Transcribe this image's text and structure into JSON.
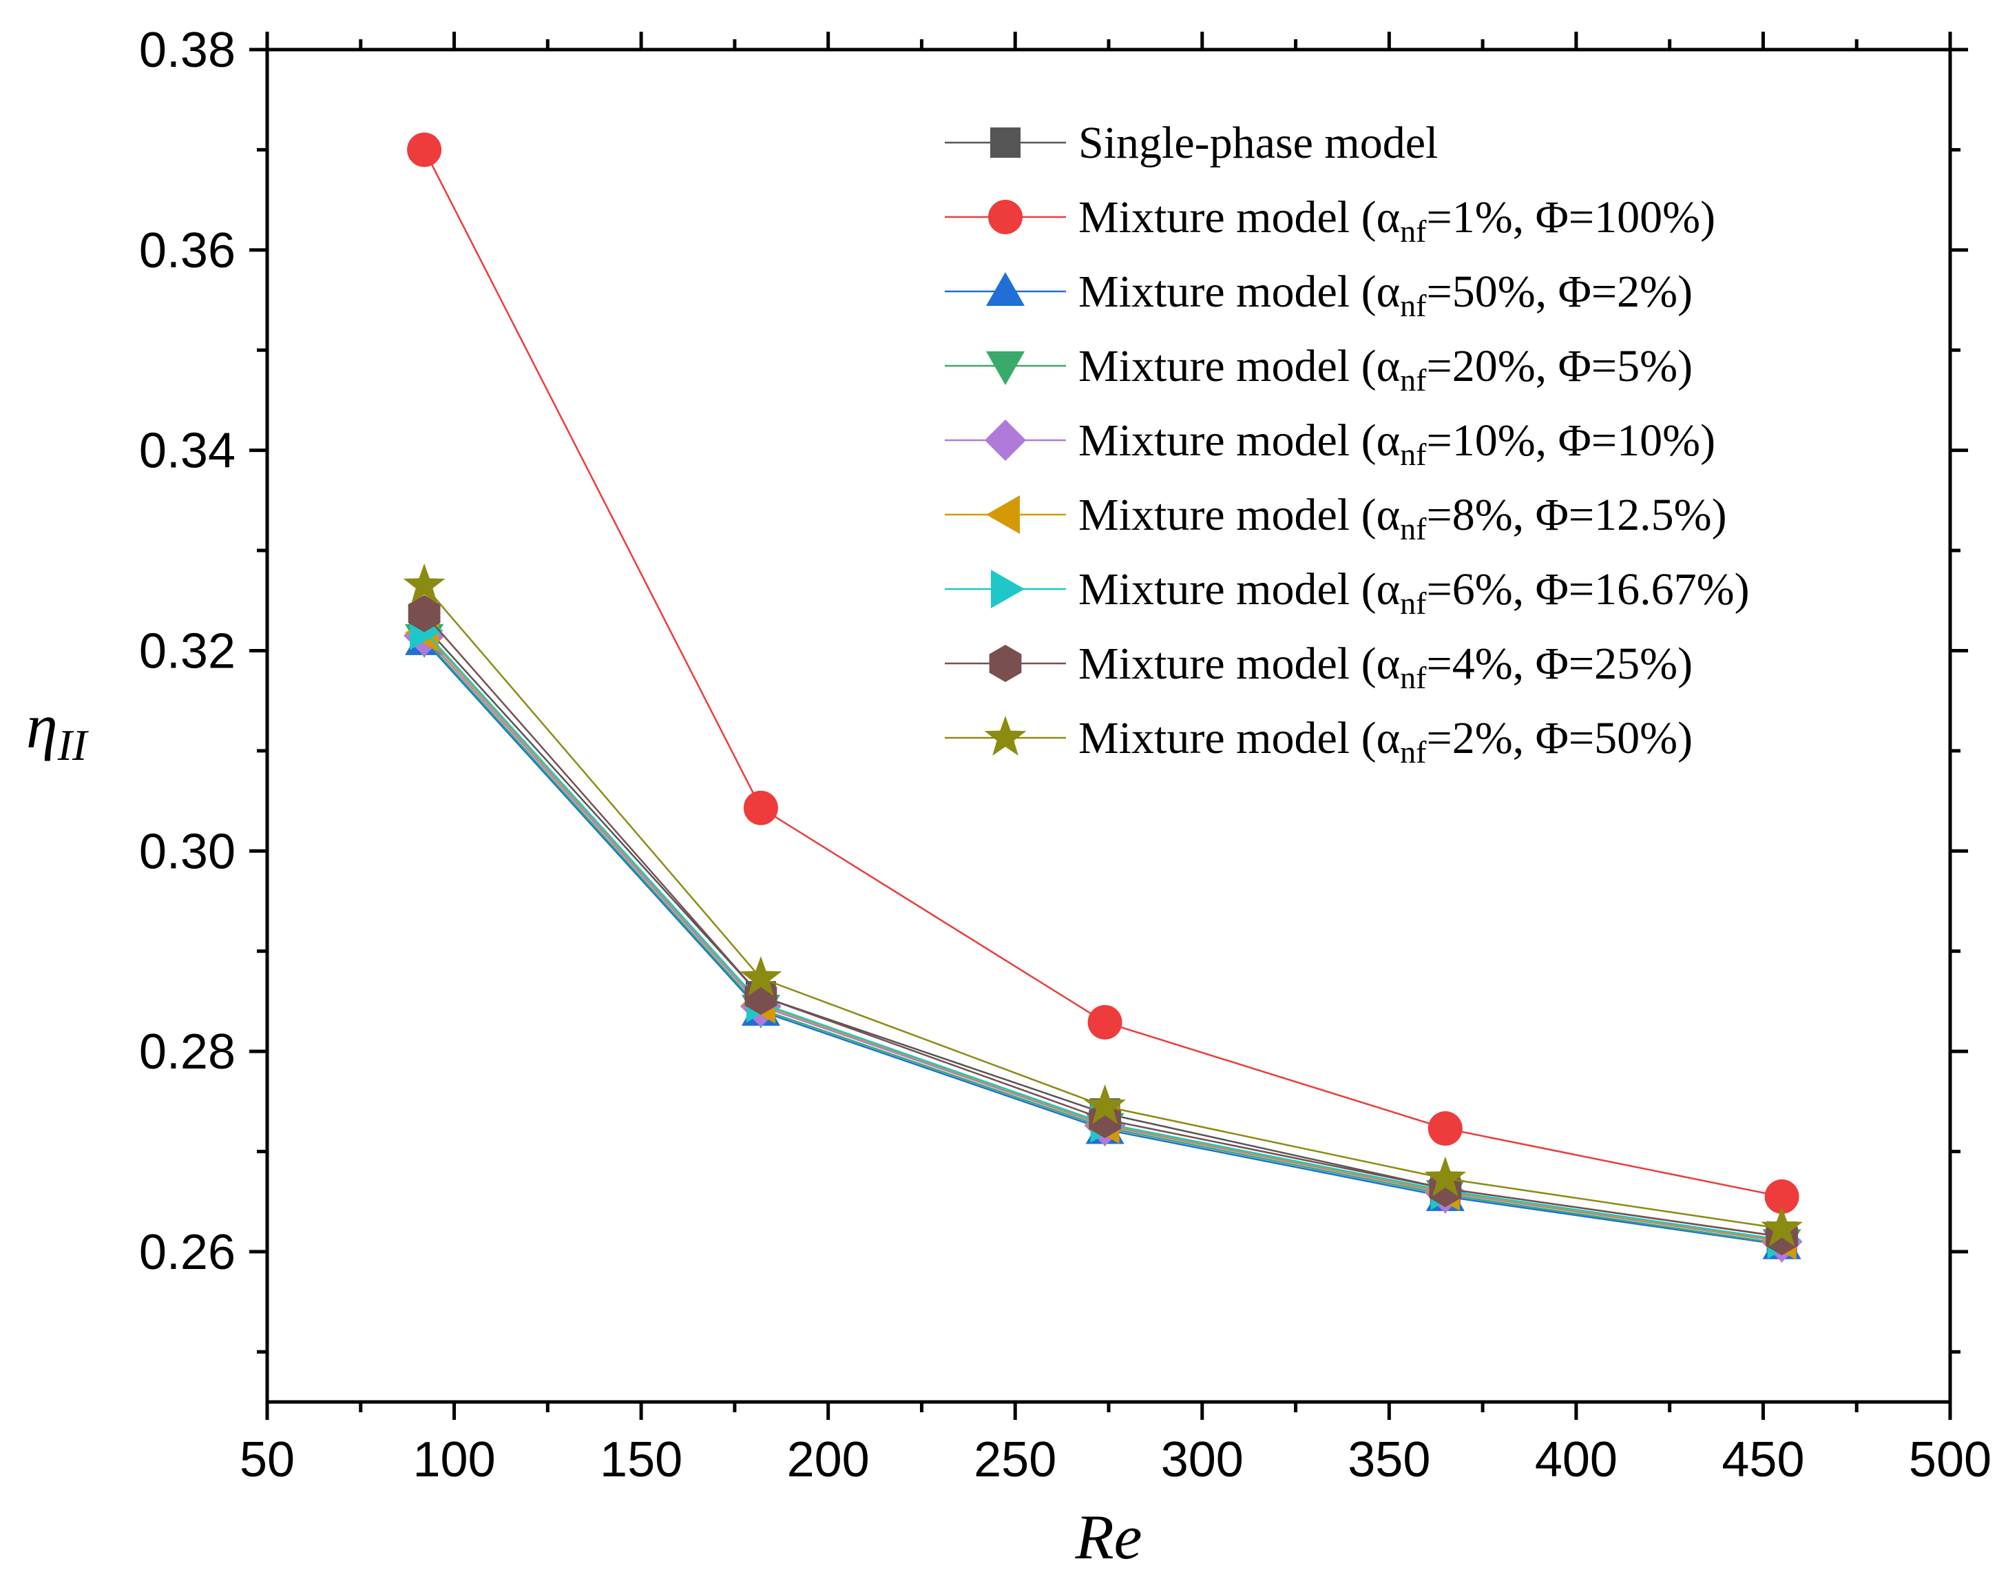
{
  "chart_data": {
    "type": "line",
    "title": "",
    "xlabel": "Re",
    "ylabel": {
      "base": "η",
      "sub": "II"
    },
    "xlim": [
      50,
      500
    ],
    "ylim": [
      0.245,
      0.38
    ],
    "x_ticks": [
      "50",
      "100",
      "150",
      "200",
      "250",
      "300",
      "350",
      "400",
      "450",
      "500"
    ],
    "x_tick_values": [
      50,
      100,
      150,
      200,
      250,
      300,
      350,
      400,
      450,
      500
    ],
    "y_ticks": [
      "0.26",
      "0.28",
      "0.30",
      "0.32",
      "0.34",
      "0.36",
      "0.38"
    ],
    "y_tick_values": [
      0.26,
      0.28,
      0.3,
      0.32,
      0.34,
      0.36,
      0.38
    ],
    "grid": false,
    "legend_position": "top-right",
    "x": [
      92,
      182,
      274,
      365,
      455
    ],
    "series": [
      {
        "name": "Single-phase model",
        "label_parts": [
          [
            "Single-phase model",
            ""
          ]
        ],
        "marker": "square",
        "color": "#555555",
        "values": [
          0.3225,
          0.2855,
          0.2738,
          0.2663,
          0.2615
        ]
      },
      {
        "name": "Mixture model (αnf=1%, Φ=100%)",
        "label_parts": [
          [
            "Mixture model (α",
            ""
          ],
          [
            "nf",
            "sub"
          ],
          [
            "=1%, Φ=100%)",
            ""
          ]
        ],
        "marker": "circle",
        "color": "#ee3b3b",
        "values": [
          0.37,
          0.3043,
          0.2829,
          0.2723,
          0.2655
        ]
      },
      {
        "name": "Mixture model (αnf=50%, Φ=2%)",
        "label_parts": [
          [
            "Mixture model (α",
            ""
          ],
          [
            "nf",
            "sub"
          ],
          [
            "=50%, Φ=2%)",
            ""
          ]
        ],
        "marker": "triangle-up",
        "color": "#1f6fd6",
        "values": [
          0.321,
          0.284,
          0.2722,
          0.2655,
          0.2607
        ]
      },
      {
        "name": "Mixture model (αnf=20%, Φ=5%)",
        "label_parts": [
          [
            "Mixture model (α",
            ""
          ],
          [
            "nf",
            "sub"
          ],
          [
            "=20%, Φ=5%)",
            ""
          ]
        ],
        "marker": "triangle-down",
        "color": "#3aaa6a",
        "values": [
          0.3212,
          0.2842,
          0.2724,
          0.2657,
          0.2608
        ]
      },
      {
        "name": "Mixture model (αnf=10%, Φ=10%)",
        "label_parts": [
          [
            "Mixture model (α",
            ""
          ],
          [
            "nf",
            "sub"
          ],
          [
            "=10%, Φ=10%)",
            ""
          ]
        ],
        "marker": "diamond",
        "color": "#b07ad8",
        "values": [
          0.3215,
          0.2845,
          0.2726,
          0.2659,
          0.261
        ]
      },
      {
        "name": "Mixture model (αnf=8%, Φ=12.5%)",
        "label_parts": [
          [
            "Mixture model (α",
            ""
          ],
          [
            "nf",
            "sub"
          ],
          [
            "=8%, Φ=12.5%)",
            ""
          ]
        ],
        "marker": "triangle-left",
        "color": "#d49a06",
        "values": [
          0.3218,
          0.2847,
          0.2727,
          0.266,
          0.2611
        ]
      },
      {
        "name": "Mixture model (αnf=6%, Φ=16.67%)",
        "label_parts": [
          [
            "Mixture model (α",
            ""
          ],
          [
            "nf",
            "sub"
          ],
          [
            "=6%, Φ=16.67%)",
            ""
          ]
        ],
        "marker": "triangle-right",
        "color": "#1ec8c8",
        "values": [
          0.322,
          0.2848,
          0.2728,
          0.2661,
          0.2612
        ]
      },
      {
        "name": "Mixture model (αnf=4%, Φ=25%)",
        "label_parts": [
          [
            "Mixture model (α",
            ""
          ],
          [
            "nf",
            "sub"
          ],
          [
            "=4%, Φ=25%)",
            ""
          ]
        ],
        "marker": "hexagon",
        "color": "#7a4f4f",
        "values": [
          0.3237,
          0.2855,
          0.2732,
          0.2663,
          0.2615
        ]
      },
      {
        "name": "Mixture model (αnf=2%, Φ=50%)",
        "label_parts": [
          [
            "Mixture model (α",
            ""
          ],
          [
            "nf",
            "sub"
          ],
          [
            "=2%, Φ=50%)",
            ""
          ]
        ],
        "marker": "star",
        "color": "#8b8b12",
        "values": [
          0.3265,
          0.2873,
          0.2745,
          0.2673,
          0.2623
        ]
      }
    ]
  }
}
